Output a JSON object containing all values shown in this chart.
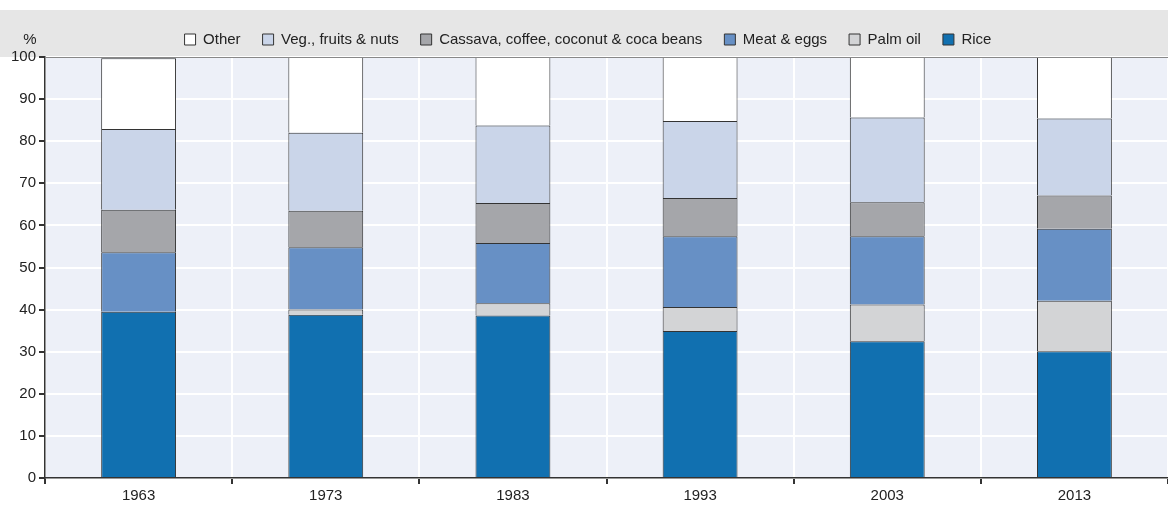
{
  "chart_data": {
    "type": "bar",
    "stacked": true,
    "ylabel": "%",
    "categories": [
      "1963",
      "1973",
      "1983",
      "1993",
      "2003",
      "2013"
    ],
    "series": [
      {
        "name": "Rice",
        "color": "#1170b0",
        "values": [
          39.5,
          38.8,
          38.6,
          34.9,
          32.5,
          30.1
        ]
      },
      {
        "name": "Palm oil",
        "color": "#d3d4d6",
        "values": [
          null,
          1.2,
          2.9,
          5.7,
          8.7,
          12
        ]
      },
      {
        "name": "Meat & eggs",
        "color": "#6790c5",
        "values": [
          14.1,
          14.8,
          14.3,
          16.8,
          16.2,
          17.1
        ]
      },
      {
        "name": "Cassava, coffee, coconut & coca beans",
        "color": "#a5a6aa",
        "values": [
          10.1,
          8.7,
          9.5,
          9.1,
          8.1,
          7.9
        ]
      },
      {
        "name": "Veg., fruits & nuts",
        "color": "#cad5e9",
        "values": [
          19.2,
          18.5,
          18.4,
          18.3,
          20.1,
          18.3
        ]
      },
      {
        "name": "Other",
        "color": "#ffffff",
        "values": [
          16.8,
          18,
          16.3,
          15.2,
          14.4,
          14.6
        ]
      }
    ],
    "ylim": [
      0,
      100
    ],
    "yticks": [
      0,
      10,
      20,
      30,
      40,
      50,
      60,
      70,
      80,
      90,
      100
    ],
    "grid": true,
    "legend": "top"
  }
}
